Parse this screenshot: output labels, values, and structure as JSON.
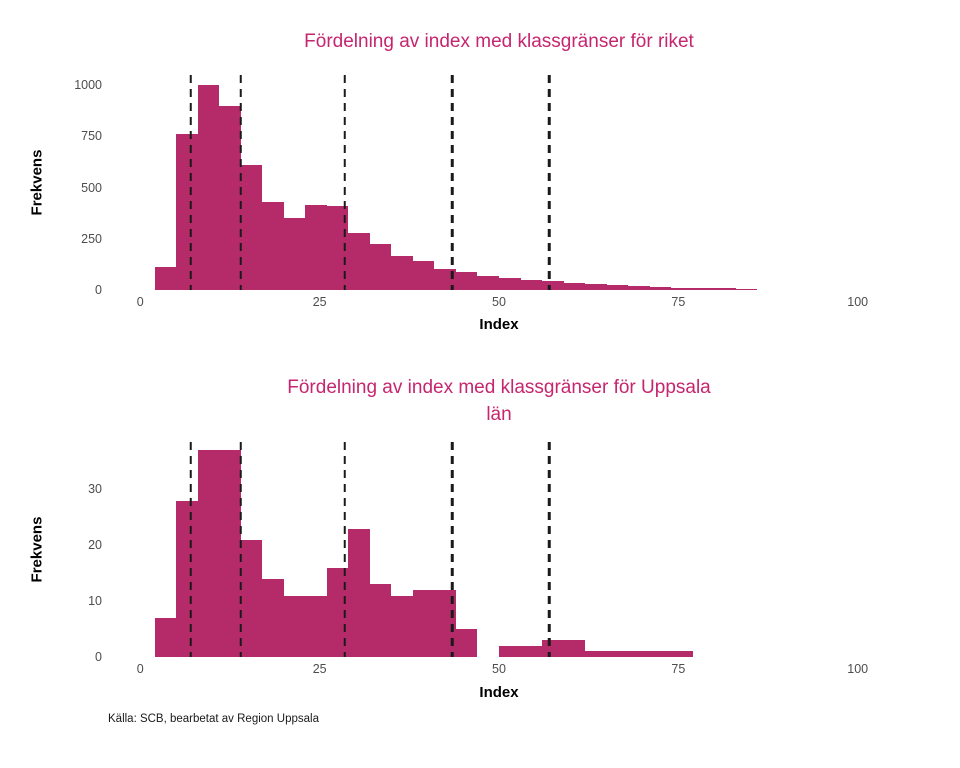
{
  "caption": "Källa: SCB, bearbetat av Region Uppsala",
  "colors": {
    "bar": "#b52a68",
    "title": "#c6256f",
    "vline": "#1a1a1a",
    "tick_text": "#4d4d4d",
    "axis_title_text": "#000000",
    "background": "#ffffff"
  },
  "chart_data": [
    {
      "type": "bar",
      "subtype": "histogram",
      "title": "Fördelning av index med klassgränser för riket",
      "xlabel": "Index",
      "ylabel": "Frekvens",
      "bin_start": 2,
      "bin_width": 3,
      "values": [
        110,
        760,
        1000,
        900,
        610,
        430,
        350,
        415,
        410,
        280,
        225,
        165,
        140,
        105,
        90,
        70,
        60,
        50,
        45,
        35,
        30,
        25,
        20,
        15,
        12,
        10,
        8,
        5
      ],
      "xticks": [
        0,
        25,
        50,
        75,
        100
      ],
      "yticks": [
        0,
        250,
        500,
        750,
        1000
      ],
      "xlim": [
        -4.5,
        104.5
      ],
      "ylim": [
        0,
        1050
      ],
      "vlines": [
        7,
        14,
        28.5,
        43.5,
        57
      ],
      "grid": false,
      "legend": "none"
    },
    {
      "type": "bar",
      "subtype": "histogram",
      "title": "Fördelning av index med klassgränser för Uppsala\nlän",
      "xlabel": "Index",
      "ylabel": "Frekvens",
      "bin_start": 2,
      "bin_width": 3,
      "values": [
        7,
        28,
        37,
        37,
        21,
        14,
        11,
        11,
        16,
        23,
        13,
        11,
        12,
        12,
        5,
        0,
        2,
        2,
        3,
        3,
        1,
        1,
        1,
        1,
        1
      ],
      "xticks": [
        0,
        25,
        50,
        75,
        100
      ],
      "yticks": [
        0,
        10,
        20,
        30
      ],
      "xlim": [
        -4.5,
        104.5
      ],
      "ylim": [
        0,
        38.5
      ],
      "vlines": [
        7,
        14,
        28.5,
        43.5,
        57
      ],
      "grid": false,
      "legend": "none"
    }
  ]
}
